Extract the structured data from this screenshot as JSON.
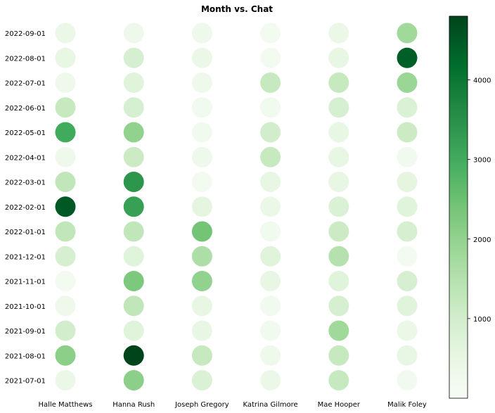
{
  "chart_data": {
    "type": "heatmap",
    "title": "Month vs. Chat",
    "xlabel": "",
    "ylabel": "",
    "marker": "circle",
    "x_categories": [
      "Halle Matthews",
      "Hanna Rush",
      "Joseph Gregory",
      "Katrina Gilmore",
      "Mae Hooper",
      "Malik Foley"
    ],
    "y_categories": [
      "2022-09-01",
      "2022-08-01",
      "2022-07-01",
      "2022-06-01",
      "2022-05-01",
      "2022-04-01",
      "2022-03-01",
      "2022-02-01",
      "2022-01-01",
      "2021-12-01",
      "2021-11-01",
      "2021-10-01",
      "2021-09-01",
      "2021-08-01",
      "2021-07-01"
    ],
    "values": [
      [
        400,
        300,
        300,
        150,
        400,
        1800
      ],
      [
        500,
        900,
        400,
        150,
        500,
        4400
      ],
      [
        300,
        700,
        300,
        1200,
        1200,
        1900
      ],
      [
        1200,
        900,
        200,
        200,
        900,
        800
      ],
      [
        3000,
        2000,
        200,
        1000,
        500,
        1100
      ],
      [
        300,
        1100,
        300,
        1200,
        500,
        200
      ],
      [
        1300,
        3400,
        150,
        500,
        500,
        600
      ],
      [
        4500,
        3200,
        600,
        400,
        800,
        700
      ],
      [
        1300,
        1300,
        2400,
        200,
        1100,
        900
      ],
      [
        900,
        700,
        1600,
        700,
        1500,
        150
      ],
      [
        150,
        2300,
        2000,
        500,
        700,
        900
      ],
      [
        300,
        1300,
        500,
        200,
        900,
        700
      ],
      [
        1000,
        700,
        500,
        200,
        1800,
        400
      ],
      [
        2100,
        4800,
        1200,
        300,
        1200,
        500
      ],
      [
        400,
        2100,
        800,
        400,
        1200,
        200
      ]
    ],
    "colorbar": {
      "colormap": "Greens",
      "vmin": 0,
      "vmax": 4800,
      "ticks": [
        1000,
        2000,
        3000,
        4000
      ]
    },
    "grid": false,
    "legend": "colorbar-right"
  }
}
